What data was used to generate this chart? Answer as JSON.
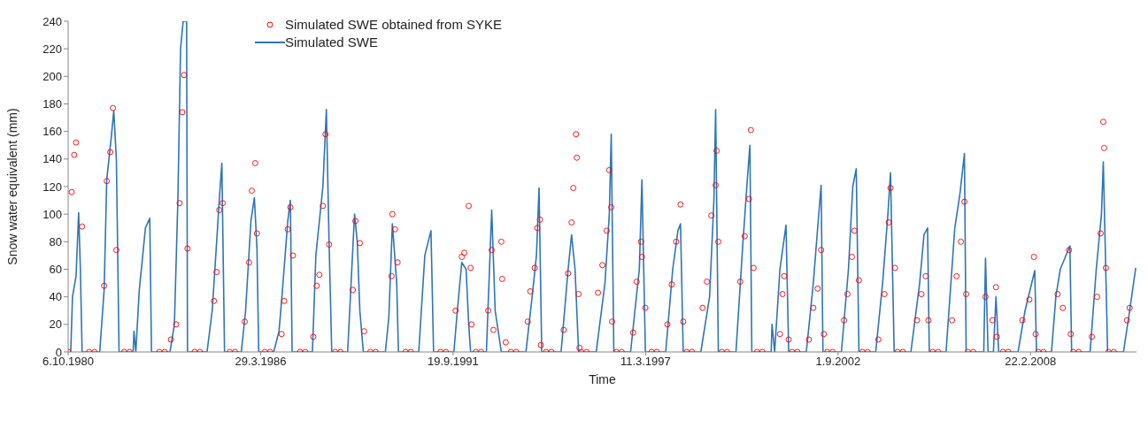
{
  "chart_data": {
    "type": "line",
    "xlabel": "Time",
    "ylabel": "Snow water equivalent (mm)",
    "xlim": [
      "1980-10-06",
      "2011-02-27"
    ],
    "xticks": [
      {
        "value": "1980-10-06",
        "label": "6.10.1980"
      },
      {
        "value": "1986-03-29",
        "label": "29.3.1986"
      },
      {
        "value": "1991-09-19",
        "label": "19.9.1991"
      },
      {
        "value": "1997-03-11",
        "label": "11.3.1997"
      },
      {
        "value": "2002-09-01",
        "label": "1.9.2002"
      },
      {
        "value": "2008-02-22",
        "label": "22.2.2008"
      }
    ],
    "ylim": [
      0,
      240
    ],
    "yticks": [
      0,
      20,
      40,
      60,
      80,
      100,
      120,
      140,
      160,
      180,
      200,
      220,
      240
    ],
    "grid": false,
    "legend": "top left",
    "series": [
      {
        "name": "Simulated SWE obtained from SYKE",
        "type": "scatter",
        "color": "#ff0000",
        "marker": "circle",
        "x": [
          "1980-11-11",
          "1980-12-08",
          "1980-12-27",
          "1981-02-28",
          "1981-10-15",
          "1981-11-11",
          "1981-12-18",
          "1982-01-14",
          "1982-02-19",
          "1983-09-09",
          "1983-11-02",
          "1983-12-08",
          "1984-01-05",
          "1984-01-23",
          "1984-02-28",
          "1984-11-29",
          "1984-12-27",
          "1985-01-23",
          "1985-02-28",
          "1985-10-15",
          "1985-11-29",
          "1985-12-27",
          "1986-02-01",
          "1986-02-19",
          "1986-11-02",
          "1986-11-29",
          "1987-01-05",
          "1987-02-01",
          "1987-02-28",
          "1987-09-27",
          "1987-11-02",
          "1987-11-29",
          "1988-01-05",
          "1988-02-01",
          "1988-03-09",
          "1988-11-11",
          "1988-12-08",
          "1989-01-23",
          "1989-03-09",
          "1989-12-18",
          "1989-12-27",
          "1990-01-23",
          "1990-02-19",
          "1991-10-15",
          "1991-12-18",
          "1992-01-14",
          "1992-02-28",
          "1992-03-19",
          "1992-03-28",
          "1992-09-18",
          "1992-10-24",
          "1992-11-11",
          "1993-02-01",
          "1993-02-10",
          "1993-03-19",
          "1993-11-02",
          "1993-11-29",
          "1994-01-14",
          "1994-02-10",
          "1994-03-09",
          "1994-03-19",
          "1994-11-11",
          "1994-12-27",
          "1995-02-01",
          "1995-02-19",
          "1995-03-19",
          "1995-03-28",
          "1995-04-15",
          "1995-04-24",
          "1995-11-02",
          "1995-12-18",
          "1996-02-01",
          "1996-02-28",
          "1996-03-19",
          "1996-03-28",
          "1996-11-02",
          "1996-12-08",
          "1997-01-23",
          "1997-02-01",
          "1997-03-09",
          "1997-10-24",
          "1997-12-08",
          "1998-01-23",
          "1998-03-09",
          "1998-04-06",
          "1998-10-24",
          "1998-12-08",
          "1999-01-23",
          "1999-03-09",
          "1999-03-19",
          "1999-04-06",
          "1999-11-20",
          "2000-01-05",
          "2000-02-19",
          "2000-03-09",
          "2000-04-06",
          "2001-01-05",
          "2001-02-01",
          "2001-02-19",
          "2001-04-06",
          "2001-11-02",
          "2001-12-18",
          "2002-02-01",
          "2002-03-09",
          "2002-04-06",
          "2002-11-02",
          "2002-12-08",
          "2003-01-23",
          "2003-02-19",
          "2003-04-06",
          "2003-10-24",
          "2003-12-27",
          "2004-02-10",
          "2004-02-28",
          "2004-04-15",
          "2004-11-29",
          "2005-01-14",
          "2005-02-28",
          "2005-03-28",
          "2005-11-29",
          "2006-01-14",
          "2006-02-28",
          "2006-04-06",
          "2006-04-24",
          "2006-11-11",
          "2007-01-23",
          "2007-02-28",
          "2007-03-09",
          "2007-11-29",
          "2008-02-10",
          "2008-03-28",
          "2008-04-15",
          "2008-11-29",
          "2009-01-23",
          "2009-03-28",
          "2009-04-15",
          "2009-11-20",
          "2010-01-14",
          "2010-02-19",
          "2010-03-19",
          "2010-03-28",
          "2010-04-15",
          "2010-11-20",
          "2010-12-18",
          "1980-10-06",
          "1981-05-12",
          "1981-07-06",
          "1982-05-12",
          "1982-07-06",
          "1983-05-12",
          "1983-07-06",
          "1984-05-12",
          "1984-07-06",
          "1985-05-12",
          "1985-07-06",
          "1986-05-12",
          "1986-07-06",
          "1987-05-12",
          "1987-07-06",
          "1988-05-12",
          "1988-07-06",
          "1989-05-12",
          "1989-07-06",
          "1990-05-12",
          "1990-07-06",
          "1991-05-12",
          "1991-07-06",
          "1992-05-12",
          "1992-07-06",
          "1993-05-12",
          "1993-07-06",
          "1994-05-12",
          "1994-07-06",
          "1995-05-12",
          "1995-07-06",
          "1996-05-12",
          "1996-07-06",
          "1997-05-12",
          "1997-07-06",
          "1998-05-12",
          "1998-07-06",
          "1999-05-12",
          "1999-07-06",
          "2000-05-12",
          "2000-07-06",
          "2001-05-12",
          "2001-07-06",
          "2002-05-12",
          "2002-07-06",
          "2003-05-12",
          "2003-07-06",
          "2004-05-12",
          "2004-07-06",
          "2005-05-12",
          "2005-07-06",
          "2006-05-12",
          "2006-07-06",
          "2007-05-12",
          "2007-07-06",
          "2008-05-12",
          "2008-07-06",
          "2009-05-12",
          "2009-07-06",
          "2010-05-12",
          "2010-07-06"
        ],
        "values": [
          116,
          143,
          152,
          91,
          48,
          124,
          145,
          177,
          74,
          9,
          20,
          108,
          174,
          201,
          75,
          37,
          58,
          103,
          108,
          22,
          65,
          117,
          137,
          86,
          13,
          37,
          89,
          105,
          70,
          11,
          48,
          56,
          106,
          158,
          78,
          45,
          95,
          79,
          15,
          55,
          100,
          89,
          65,
          30,
          69,
          72,
          106,
          61,
          20,
          30,
          74,
          16,
          80,
          53,
          7,
          22,
          44,
          61,
          90,
          96,
          5,
          16,
          57,
          94,
          119,
          158,
          141,
          42,
          3,
          43,
          63,
          88,
          132,
          105,
          22,
          14,
          51,
          80,
          69,
          32,
          20,
          49,
          80,
          107,
          22,
          32,
          51,
          99,
          121,
          146,
          80,
          51,
          84,
          111,
          161,
          61,
          13,
          42,
          55,
          9,
          9,
          32,
          46,
          74,
          13,
          23,
          42,
          69,
          88,
          52,
          9,
          42,
          94,
          119,
          61,
          23,
          42,
          55,
          23,
          23,
          55,
          80,
          109,
          42,
          40,
          23,
          47,
          11,
          23,
          38,
          69,
          13,
          42,
          32,
          74,
          13,
          11,
          40,
          86,
          167,
          148,
          61,
          23,
          32,
          0,
          0,
          0,
          0,
          0,
          0,
          0,
          0,
          0,
          0,
          0,
          0,
          0,
          0,
          0,
          0,
          0,
          0,
          0,
          0,
          0,
          0,
          0,
          0,
          0,
          0,
          0,
          0,
          0,
          0,
          0,
          0,
          0,
          0,
          0,
          0,
          0,
          0,
          0,
          0,
          0,
          0,
          0,
          0,
          0,
          0,
          0,
          0,
          0,
          0,
          0,
          0,
          0,
          0,
          0,
          0,
          0,
          0,
          0,
          0,
          0
        ]
      },
      {
        "name": "Simulated SWE",
        "color": "#2e75b6",
        "marker": "none",
        "x": [
          "1980-11-02",
          "1980-11-20",
          "1980-12-27",
          "1981-01-23",
          "1981-02-10",
          "1981-02-28",
          "1981-08-30",
          "1981-10-15",
          "1981-11-11",
          "1981-12-27",
          "1982-01-23",
          "1982-02-19",
          "1982-03-19",
          "1982-08-12",
          "1982-08-21",
          "1982-09-09",
          "1982-10-15",
          "1982-11-20",
          "1982-12-18",
          "1983-02-01",
          "1983-02-19",
          "1983-08-30",
          "1983-10-15",
          "1983-11-20",
          "1983-12-18",
          "1984-01-14",
          "1984-02-19",
          "1984-02-28",
          "1984-09-18",
          "1984-11-11",
          "1984-12-27",
          "1985-01-23",
          "1985-02-19",
          "1985-03-19",
          "1985-09-09",
          "1985-10-24",
          "1985-12-18",
          "1986-01-23",
          "1986-02-19",
          "1986-03-09",
          "1986-08-12",
          "1986-10-06",
          "1986-11-11",
          "1987-01-05",
          "1987-02-01",
          "1987-02-19",
          "1987-09-18",
          "1987-10-24",
          "1988-01-05",
          "1988-02-10",
          "1988-03-09",
          "1988-04-06",
          "1988-09-18",
          "1988-10-24",
          "1988-11-29",
          "1988-12-27",
          "1989-01-23",
          "1989-02-28",
          "1989-10-15",
          "1989-11-20",
          "1989-12-27",
          "1990-02-10",
          "1990-02-28",
          "1990-09-27",
          "1990-11-29",
          "1991-02-01",
          "1991-02-28",
          "1991-09-27",
          "1991-11-02",
          "1991-12-18",
          "1992-02-01",
          "1992-02-28",
          "1992-03-19",
          "1992-08-30",
          "1992-10-24",
          "1992-11-29",
          "1993-02-01",
          "1993-10-15",
          "1993-12-18",
          "1994-02-01",
          "1994-02-28",
          "1994-03-28",
          "1994-10-15",
          "1994-12-27",
          "1995-02-01",
          "1995-03-09",
          "1995-04-15",
          "1995-10-15",
          "1996-01-14",
          "1996-02-28",
          "1996-03-19",
          "1996-04-15",
          "1996-10-06",
          "1997-01-05",
          "1997-02-01",
          "1997-03-09",
          "1997-10-06",
          "1997-12-18",
          "1998-02-10",
          "1998-03-09",
          "1998-04-06",
          "1998-10-06",
          "1999-01-05",
          "1999-02-19",
          "1999-03-09",
          "1999-04-06",
          "1999-10-06",
          "1999-12-18",
          "2000-02-01",
          "2000-02-28",
          "2000-03-19",
          "2000-10-06",
          "2000-10-15",
          "2000-11-11",
          "2001-01-05",
          "2001-03-09",
          "2001-04-06",
          "2001-10-06",
          "2001-12-18",
          "2002-02-01",
          "2002-03-09",
          "2002-03-28",
          "2002-10-06",
          "2002-12-18",
          "2003-02-01",
          "2003-03-09",
          "2003-04-06",
          "2003-09-27",
          "2003-12-08",
          "2004-02-01",
          "2004-02-28",
          "2004-04-06",
          "2004-09-27",
          "2004-12-27",
          "2005-02-10",
          "2005-03-19",
          "2005-04-06",
          "2005-09-27",
          "2005-12-27",
          "2006-02-19",
          "2006-04-06",
          "2006-04-24",
          "2006-10-24",
          "2006-11-11",
          "2006-12-08",
          "2007-02-01",
          "2007-02-28",
          "2007-03-28",
          "2007-10-15",
          "2007-12-27",
          "2008-04-06",
          "2008-04-24",
          "2008-09-27",
          "2008-11-11",
          "2008-12-27",
          "2009-04-06",
          "2009-04-24",
          "2009-11-02",
          "2010-01-05",
          "2010-02-28",
          "2010-03-19",
          "2010-05-03",
          "2010-10-15",
          "2010-12-18",
          "2011-02-19"
        ],
        "values": [
          0,
          40,
          55,
          101,
          60,
          0,
          0,
          45,
          125,
          155,
          175,
          140,
          0,
          0,
          15,
          0,
          45,
          70,
          90,
          97,
          0,
          0,
          20,
          110,
          220,
          240,
          240,
          0,
          0,
          30,
          80,
          110,
          137,
          0,
          0,
          30,
          95,
          112,
          75,
          0,
          0,
          15,
          45,
          95,
          110,
          0,
          0,
          70,
          120,
          176,
          80,
          0,
          0,
          50,
          100,
          80,
          30,
          0,
          0,
          25,
          93,
          50,
          0,
          0,
          70,
          88,
          0,
          0,
          30,
          65,
          60,
          20,
          0,
          0,
          103,
          30,
          0,
          0,
          40,
          70,
          119,
          0,
          0,
          60,
          85,
          60,
          0,
          0,
          50,
          100,
          158,
          0,
          0,
          60,
          125,
          0,
          0,
          60,
          88,
          93,
          0,
          0,
          40,
          110,
          176,
          0,
          0,
          80,
          125,
          150,
          0,
          0,
          20,
          0,
          60,
          92,
          0,
          0,
          50,
          90,
          121,
          0,
          0,
          60,
          120,
          133,
          0,
          0,
          50,
          100,
          130,
          0,
          0,
          50,
          85,
          90,
          0,
          0,
          90,
          115,
          144,
          0,
          0,
          68,
          0,
          0,
          40,
          0,
          0,
          30,
          59,
          0,
          0,
          40,
          60,
          77,
          0,
          0,
          60,
          100,
          138,
          0,
          0,
          30,
          61
        ]
      }
    ]
  }
}
